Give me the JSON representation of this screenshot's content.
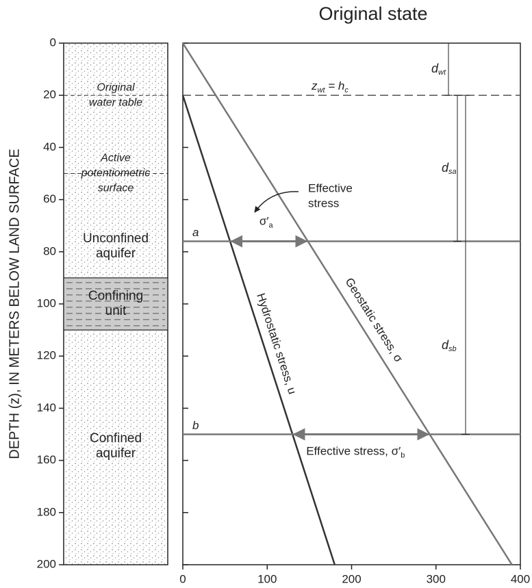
{
  "chart_data": {
    "type": "line",
    "title": "Original state",
    "ylabel": "DEPTH (z), IN METERS BELOW LAND SURFACE",
    "xlim": [
      0,
      400
    ],
    "xticks": [
      0,
      100,
      200,
      300,
      400
    ],
    "ylim": [
      200,
      0
    ],
    "yticks": [
      0,
      20,
      40,
      60,
      80,
      100,
      120,
      140,
      160,
      180,
      200
    ],
    "series": [
      {
        "name": "Hydrostatic stress, u",
        "color": "#333333",
        "x": [
          0,
          180
        ],
        "values": [
          20,
          200
        ]
      },
      {
        "name": "Geostatic stress, σ",
        "color": "#777777",
        "x": [
          0,
          390
        ],
        "values": [
          0,
          200
        ]
      }
    ],
    "water_table": {
      "depth": 20,
      "label": [
        "z",
        "wt",
        " = h",
        "c"
      ]
    },
    "levels": [
      {
        "name": "a",
        "depth": 76,
        "label": [
          "σ′",
          "a"
        ]
      },
      {
        "name": "b",
        "depth": 150,
        "label": [
          "Effective stress, σ′",
          "b"
        ]
      }
    ],
    "effective_stress_note": [
      "Effective",
      "stress"
    ],
    "dimensions": [
      {
        "label": [
          "d",
          "wt"
        ],
        "from": 0,
        "to": 20
      },
      {
        "label": [
          "d",
          "sa"
        ],
        "from": 20,
        "to": 76
      },
      {
        "label": [
          "d",
          "sb"
        ],
        "from": 20,
        "to": 150
      }
    ],
    "column": {
      "water_table": {
        "lines": [
          "Original",
          "water table"
        ],
        "depth": 20
      },
      "potentiometric_surface": {
        "lines": [
          "Active",
          "potentiometric",
          "surface"
        ],
        "depth": 50
      },
      "unconfined_aquifer": {
        "lines": [
          "Unconfined",
          "aquifer"
        ]
      },
      "confining_unit": {
        "lines": [
          "Confining",
          "unit"
        ],
        "top": 90,
        "bottom": 110
      },
      "confined_aquifer": {
        "lines": [
          "Confined",
          "aquifer"
        ]
      }
    }
  }
}
